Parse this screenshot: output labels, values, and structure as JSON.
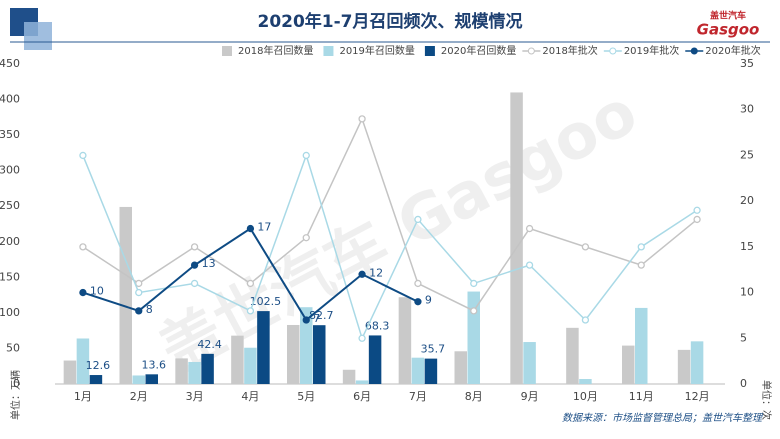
{
  "chart_data": {
    "type": "bar",
    "title": "2020年1-7月召回频次、规模情况",
    "logo": [
      "盖世汽车",
      "Gasgoo"
    ],
    "watermark": "盖世汽车 Gasgoo",
    "y_label": "单位：万辆",
    "y2_label": "单位：次",
    "source": "数据来源：市场监督管理总局；盖世汽车整理",
    "categories": [
      "1月",
      "2月",
      "3月",
      "4月",
      "5月",
      "6月",
      "7月",
      "8月",
      "9月",
      "10月",
      "11月",
      "12月"
    ],
    "series": [
      {
        "name": "2018年召回数量",
        "type": "bar",
        "color": "#c9c9c9",
        "values": [
          33,
          249,
          36,
          68,
          83,
          20,
          122,
          46,
          410,
          79,
          54,
          48
        ]
      },
      {
        "name": "2019年召回数量",
        "type": "bar",
        "color": "#a9d9e6",
        "values": [
          64,
          12,
          31,
          51,
          108,
          5,
          37,
          130,
          59,
          7,
          107,
          60
        ]
      },
      {
        "name": "2020年召回数量",
        "type": "bar",
        "color": "#0b4a84",
        "data_labels": true,
        "values": [
          12.6,
          13.6,
          42.4,
          102.5,
          82.7,
          68.3,
          35.7,
          null,
          null,
          null,
          null,
          null
        ]
      },
      {
        "name": "2018年批次",
        "type": "line",
        "axis": "y2",
        "color": "#c4c4c4",
        "values": [
          15,
          11,
          15,
          11,
          16,
          29,
          11,
          8,
          17,
          15,
          13,
          18
        ]
      },
      {
        "name": "2019年批次",
        "type": "line",
        "axis": "y2",
        "color": "#a9d9e6",
        "values": [
          25,
          10,
          11,
          8,
          25,
          5,
          18,
          11,
          13,
          7,
          15,
          19
        ]
      },
      {
        "name": "2020年批次",
        "type": "line",
        "axis": "y2",
        "color": "#0e4b84",
        "data_labels": true,
        "filled_markers": true,
        "values": [
          10,
          8,
          13,
          17,
          7,
          12,
          9,
          null,
          null,
          null,
          null,
          null
        ]
      }
    ],
    "ylim": [
      0,
      450
    ],
    "yticks": [
      0,
      50,
      100,
      150,
      200,
      250,
      300,
      350,
      400,
      450
    ],
    "y2lim": [
      0,
      35
    ],
    "y2ticks": [
      0,
      5,
      10,
      15,
      20,
      25,
      30,
      35
    ],
    "grid": false,
    "legend": "top"
  }
}
